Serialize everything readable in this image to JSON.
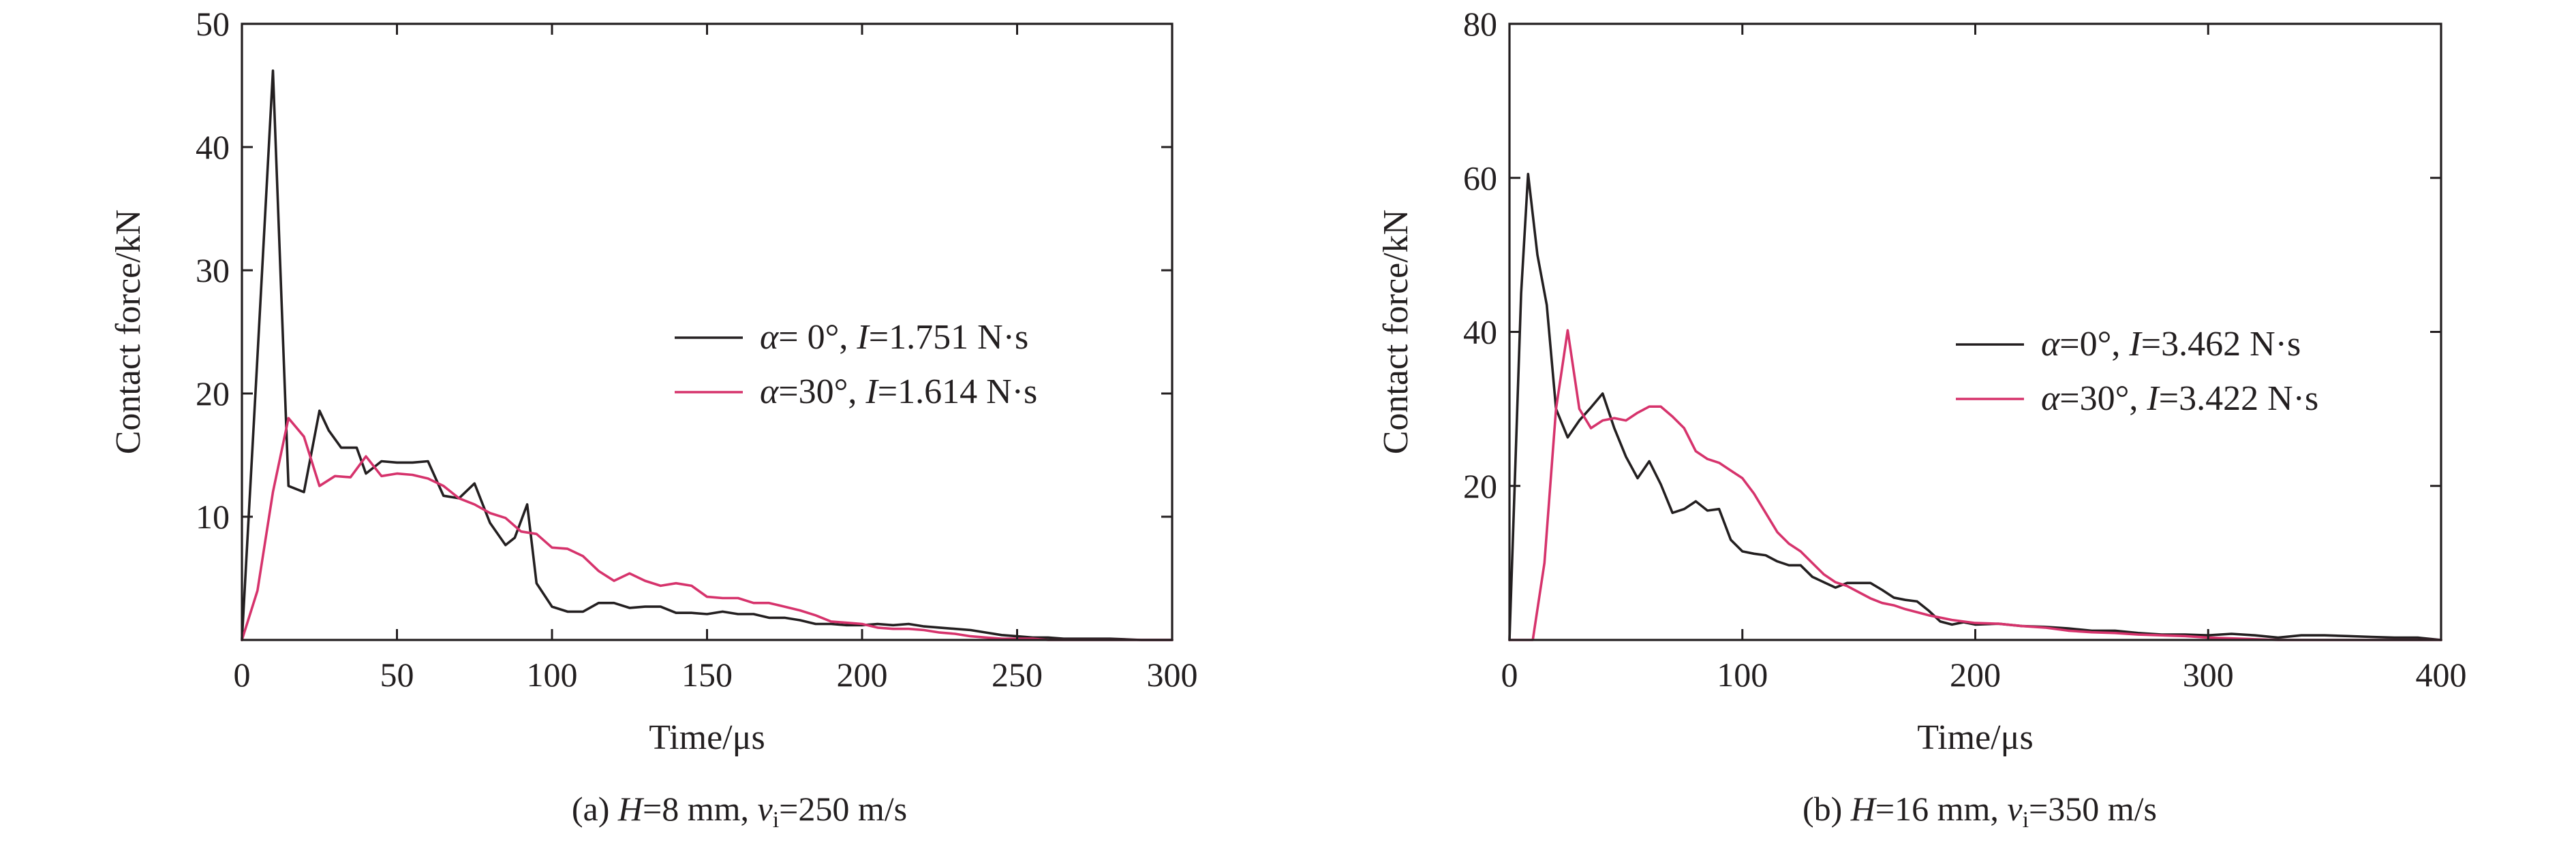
{
  "colors": {
    "series_0": "#231f20",
    "series_30": "#d6336c",
    "axis": "#231f20"
  },
  "chart_data": [
    {
      "type": "line",
      "caption_prefix": "(a) ",
      "caption_var1": "H",
      "caption_mid1": "=8 mm, ",
      "caption_var2": "v",
      "caption_sub": "i",
      "caption_end": "=250 m/s",
      "xlabel": "Time/μs",
      "ylabel": "Contact force/kN",
      "xlim": [
        0,
        300
      ],
      "ylim": [
        0,
        50
      ],
      "xticks": [
        "0",
        "50",
        "100",
        "150",
        "200",
        "250",
        "300"
      ],
      "xtick_values": [
        0,
        50,
        100,
        150,
        200,
        250,
        300
      ],
      "yticks": [
        "10",
        "20",
        "30",
        "40",
        "50"
      ],
      "ytick_values": [
        10,
        20,
        30,
        40,
        50
      ],
      "series": [
        {
          "color": "#231f20",
          "legend": {
            "sym": "α",
            "eq_angle": "= 0°, ",
            "sym2": "I",
            "eq_imp": "=1.751 N·s"
          },
          "x": [
            0,
            5,
            10,
            15,
            20,
            25,
            28,
            32,
            37,
            40,
            45,
            50,
            55,
            60,
            65,
            70,
            75,
            80,
            85,
            88,
            92,
            95,
            100,
            105,
            110,
            115,
            120,
            125,
            130,
            135,
            140,
            145,
            150,
            155,
            160,
            165,
            170,
            175,
            180,
            185,
            190,
            195,
            200,
            205,
            210,
            215,
            220,
            225,
            230,
            235,
            240,
            245,
            250,
            255,
            260,
            265,
            270,
            275,
            280,
            290,
            300
          ],
          "y": [
            0,
            23,
            46.2,
            12.5,
            12,
            18.6,
            17,
            15.6,
            15.6,
            13.5,
            14.5,
            14.4,
            14.4,
            14.5,
            11.7,
            11.5,
            12.7,
            9.5,
            7.7,
            8.3,
            11,
            4.6,
            2.7,
            2.3,
            2.3,
            3,
            3,
            2.6,
            2.7,
            2.7,
            2.2,
            2.2,
            2.1,
            2.3,
            2.1,
            2.1,
            1.8,
            1.8,
            1.6,
            1.3,
            1.3,
            1.2,
            1.2,
            1.3,
            1.2,
            1.3,
            1.1,
            1,
            0.9,
            0.8,
            0.6,
            0.4,
            0.3,
            0.2,
            0.2,
            0.1,
            0.1,
            0.1,
            0.1,
            0,
            0
          ]
        },
        {
          "color": "#d6336c",
          "legend": {
            "sym": "α",
            "eq_angle": "=30°, ",
            "sym2": "I",
            "eq_imp": "=1.614 N·s"
          },
          "x": [
            0,
            5,
            10,
            15,
            20,
            25,
            30,
            35,
            40,
            45,
            50,
            55,
            60,
            65,
            70,
            75,
            80,
            85,
            90,
            95,
            100,
            105,
            110,
            115,
            120,
            125,
            130,
            135,
            140,
            145,
            150,
            155,
            160,
            165,
            170,
            175,
            180,
            185,
            190,
            195,
            200,
            205,
            210,
            215,
            220,
            225,
            230,
            235,
            240,
            245,
            250,
            255,
            260,
            270,
            280,
            290,
            300
          ],
          "y": [
            0,
            4,
            12,
            18,
            16.5,
            12.5,
            13.3,
            13.2,
            14.9,
            13.3,
            13.5,
            13.4,
            13.1,
            12.5,
            11.5,
            11,
            10.3,
            9.9,
            8.8,
            8.6,
            7.5,
            7.4,
            6.8,
            5.6,
            4.8,
            5.4,
            4.8,
            4.4,
            4.6,
            4.4,
            3.5,
            3.4,
            3.4,
            3,
            3,
            2.7,
            2.4,
            2,
            1.5,
            1.4,
            1.3,
            1,
            0.9,
            0.9,
            0.8,
            0.6,
            0.5,
            0.3,
            0.2,
            0.1,
            0.1,
            0.1,
            0,
            0,
            0,
            0,
            0
          ]
        }
      ]
    },
    {
      "type": "line",
      "caption_prefix": "(b) ",
      "caption_var1": "H",
      "caption_mid1": "=16 mm, ",
      "caption_var2": "v",
      "caption_sub": "i",
      "caption_end": "=350 m/s",
      "xlabel": "Time/μs",
      "ylabel": "Contact force/kN",
      "xlim": [
        0,
        400
      ],
      "ylim": [
        0,
        80
      ],
      "xticks": [
        "0",
        "100",
        "200",
        "300",
        "400"
      ],
      "xtick_values": [
        0,
        100,
        200,
        300,
        400
      ],
      "yticks": [
        "20",
        "40",
        "60",
        "80"
      ],
      "ytick_values": [
        20,
        40,
        60,
        80
      ],
      "series": [
        {
          "color": "#231f20",
          "legend": {
            "sym": "α",
            "eq_angle": "=0°, ",
            "sym2": "I",
            "eq_imp": "=3.462 N·s"
          },
          "x": [
            0,
            5,
            8,
            12,
            16,
            20,
            25,
            30,
            35,
            40,
            45,
            50,
            55,
            60,
            65,
            70,
            75,
            80,
            85,
            90,
            95,
            100,
            105,
            110,
            115,
            120,
            125,
            130,
            135,
            140,
            145,
            150,
            155,
            160,
            165,
            170,
            175,
            180,
            185,
            190,
            195,
            200,
            210,
            220,
            230,
            240,
            250,
            260,
            270,
            280,
            290,
            300,
            310,
            320,
            330,
            340,
            350,
            360,
            370,
            380,
            390,
            400
          ],
          "y": [
            0,
            45,
            60.5,
            50,
            43.5,
            30,
            26.3,
            28.5,
            30.2,
            32,
            27.5,
            23.8,
            21,
            23.2,
            20.2,
            16.5,
            17,
            18,
            16.8,
            17,
            13,
            11.5,
            11.2,
            11,
            10.2,
            9.7,
            9.7,
            8.2,
            7.5,
            6.8,
            7.4,
            7.4,
            7.4,
            6.5,
            5.5,
            5.2,
            5,
            3.8,
            2.4,
            2,
            2.3,
            2,
            2.1,
            1.8,
            1.7,
            1.5,
            1.2,
            1.2,
            0.9,
            0.7,
            0.7,
            0.6,
            0.8,
            0.6,
            0.3,
            0.6,
            0.6,
            0.5,
            0.4,
            0.3,
            0.3,
            0
          ]
        },
        {
          "color": "#d6336c",
          "legend": {
            "sym": "α",
            "eq_angle": "=30°, ",
            "sym2": "I",
            "eq_imp": "=3.422 N·s"
          },
          "x": [
            0,
            10,
            15,
            20,
            25,
            30,
            35,
            40,
            45,
            50,
            55,
            60,
            65,
            70,
            75,
            80,
            85,
            90,
            95,
            100,
            105,
            110,
            115,
            120,
            125,
            130,
            135,
            140,
            145,
            150,
            155,
            160,
            165,
            170,
            175,
            180,
            185,
            190,
            195,
            200,
            210,
            220,
            230,
            240,
            250,
            260,
            270,
            280,
            290,
            300,
            310,
            320,
            330,
            340,
            350,
            360,
            370,
            380,
            390,
            400
          ],
          "y": [
            0,
            0,
            10,
            30,
            40.2,
            30,
            27.5,
            28.5,
            28.8,
            28.5,
            29.5,
            30.3,
            30.3,
            29,
            27.5,
            24.5,
            23.5,
            23,
            22,
            21,
            19,
            16.5,
            14,
            12.5,
            11.5,
            10,
            8.5,
            7.5,
            7,
            6.2,
            5.4,
            4.8,
            4.5,
            4,
            3.6,
            3.2,
            2.9,
            2.6,
            2.4,
            2.2,
            2.1,
            1.8,
            1.6,
            1.2,
            1,
            0.9,
            0.7,
            0.6,
            0.5,
            0.3,
            0.2,
            0.1,
            0,
            0,
            0,
            0,
            0,
            0,
            0,
            0
          ]
        }
      ]
    }
  ]
}
